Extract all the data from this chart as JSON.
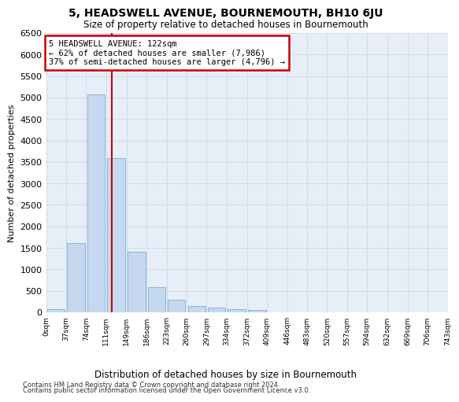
{
  "title": "5, HEADSWELL AVENUE, BOURNEMOUTH, BH10 6JU",
  "subtitle": "Size of property relative to detached houses in Bournemouth",
  "xlabel": "Distribution of detached houses by size in Bournemouth",
  "ylabel": "Number of detached properties",
  "footer1": "Contains HM Land Registry data © Crown copyright and database right 2024.",
  "footer2": "Contains public sector information licensed under the Open Government Licence v3.0.",
  "bar_color": "#c5d8f0",
  "bar_edge_color": "#7bafd4",
  "grid_color": "#d0daea",
  "bg_color": "#e8eef8",
  "annotation_text": "5 HEADSWELL AVENUE: 122sqm\n← 62% of detached houses are smaller (7,986)\n37% of semi-detached houses are larger (4,796) →",
  "vline_x": 122,
  "annotation_box_color": "#cc0000",
  "categories": [
    "0sqm",
    "37sqm",
    "74sqm",
    "111sqm",
    "149sqm",
    "186sqm",
    "223sqm",
    "260sqm",
    "297sqm",
    "334sqm",
    "372sqm",
    "409sqm",
    "446sqm",
    "483sqm",
    "520sqm",
    "557sqm",
    "594sqm",
    "632sqm",
    "669sqm",
    "706sqm",
    "743sqm"
  ],
  "bin_left": [
    0,
    37,
    74,
    111,
    149,
    186,
    223,
    260,
    297,
    334,
    372,
    409,
    446,
    483,
    520,
    557,
    594,
    632,
    669,
    706
  ],
  "bin_width": 37,
  "values": [
    70,
    1620,
    5070,
    3590,
    1410,
    590,
    290,
    150,
    110,
    75,
    50,
    0,
    0,
    0,
    0,
    0,
    0,
    0,
    0,
    0
  ],
  "ylim": [
    0,
    6500
  ],
  "xlim_max": 743,
  "yticks": [
    0,
    500,
    1000,
    1500,
    2000,
    2500,
    3000,
    3500,
    4000,
    4500,
    5000,
    5500,
    6000,
    6500
  ]
}
